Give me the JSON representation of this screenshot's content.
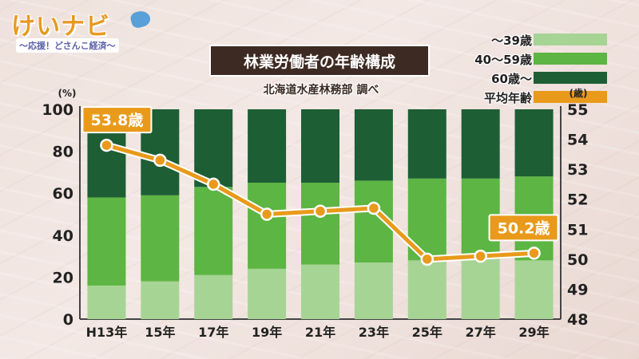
{
  "logo": {
    "name": "けいナビ",
    "tagline": "〜応援！どさんこ経済〜"
  },
  "title": "林業労働者の年齢構成",
  "subtitle": "北海道水産林務部 調べ",
  "legend": [
    {
      "label": "〜39歳",
      "color": "#a6d494"
    },
    {
      "label": "40〜59歳",
      "color": "#5db543"
    },
    {
      "label": "60歳〜",
      "color": "#1d5e35"
    },
    {
      "label": "平均年齢",
      "color": "#e99a1a"
    }
  ],
  "chart_data": {
    "type": "bar",
    "stacked": true,
    "categories": [
      "H13年",
      "15年",
      "17年",
      "19年",
      "21年",
      "23年",
      "25年",
      "27年",
      "29年"
    ],
    "series": [
      {
        "name": "〜39歳",
        "values": [
          16,
          18,
          21,
          24,
          26,
          27,
          28,
          29,
          28
        ]
      },
      {
        "name": "40〜59歳",
        "values": [
          42,
          41,
          42,
          41,
          39,
          39,
          39,
          38,
          40
        ]
      },
      {
        "name": "60歳〜",
        "values": [
          42,
          41,
          37,
          35,
          35,
          34,
          33,
          33,
          32
        ]
      }
    ],
    "line_series": {
      "name": "平均年齢",
      "values": [
        53.8,
        53.3,
        52.5,
        51.5,
        51.6,
        51.7,
        50.0,
        50.1,
        50.2
      ],
      "labels": [
        {
          "index": 0,
          "text": "53.8歳"
        },
        {
          "index": 8,
          "text": "50.2歳"
        }
      ]
    },
    "ylabel_left": "(%)",
    "ylabel_right": "(歳)",
    "ylim_left": [
      0,
      100
    ],
    "ylim_right": [
      48,
      55
    ],
    "yticks_left": [
      "0",
      "20",
      "40",
      "60",
      "80",
      "100"
    ],
    "yticks_right": [
      "48",
      "49",
      "50",
      "51",
      "52",
      "53",
      "54",
      "55"
    ],
    "colors": {
      "under39": "#a6d494",
      "mid": "#5db543",
      "over60": "#1d5e35",
      "line": "#e99a1a"
    }
  }
}
